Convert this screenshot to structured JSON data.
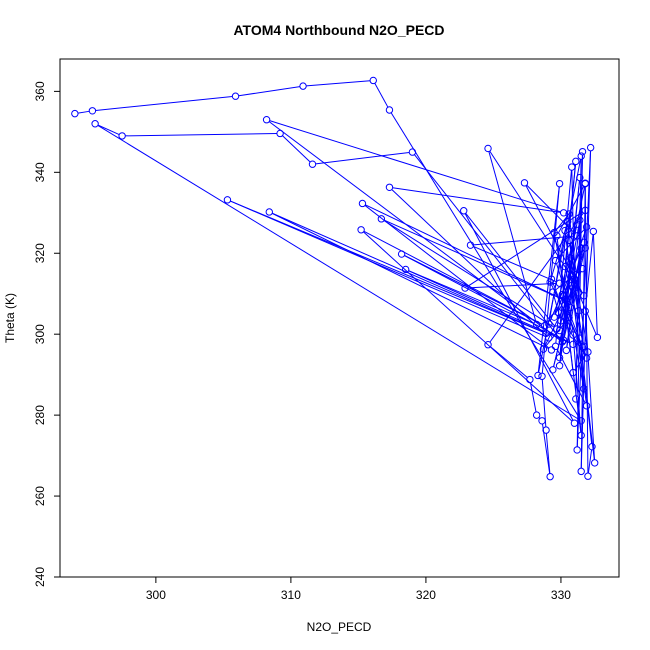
{
  "chart_data": {
    "type": "line",
    "title": "ATOM4 Northbound N2O_PECD",
    "xlabel": "N2O_PECD",
    "ylabel": "Theta (K)",
    "xlim": [
      292.9,
      334.3
    ],
    "ylim": [
      240,
      368
    ],
    "xticks": [
      300,
      310,
      320,
      330
    ],
    "yticks": [
      240,
      260,
      280,
      300,
      320,
      340,
      360
    ],
    "color": "#0000ff",
    "marker": "open-circle",
    "grid": false,
    "series": [
      {
        "points": [
          [
            294.0,
            354.5
          ],
          [
            295.3,
            355.2
          ],
          [
            305.9,
            358.8
          ],
          [
            310.9,
            361.3
          ],
          [
            316.1,
            362.7
          ],
          [
            317.3,
            355.4
          ],
          [
            331.5,
            278.6
          ],
          [
            295.5,
            352.0
          ],
          [
            297.5,
            349.0
          ],
          [
            309.2,
            349.6
          ],
          [
            311.6,
            342.0
          ],
          [
            319.0,
            345.0
          ],
          [
            330.1,
            298.1
          ],
          [
            308.2,
            353.0
          ],
          [
            330.2,
            330.0
          ],
          [
            317.3,
            336.3
          ],
          [
            329.1,
            299.1
          ],
          [
            305.3,
            333.2
          ],
          [
            328.9,
            300.2
          ],
          [
            308.4,
            330.2
          ],
          [
            329.3,
            296.1
          ],
          [
            315.3,
            332.3
          ],
          [
            330.4,
            308.2
          ],
          [
            316.7,
            328.5
          ],
          [
            329.7,
            301.3
          ],
          [
            322.8,
            330.5
          ],
          [
            331.0,
            278.0
          ],
          [
            315.2,
            325.8
          ],
          [
            328.8,
            302.1
          ],
          [
            318.2,
            319.8
          ],
          [
            330.9,
            297.5
          ],
          [
            318.5,
            316.0
          ],
          [
            328.2,
            302.4
          ],
          [
            324.6,
            345.9
          ],
          [
            331.7,
            309.5
          ],
          [
            327.3,
            337.4
          ],
          [
            331.2,
            324.3
          ],
          [
            323.3,
            322.0
          ],
          [
            329.9,
            312.6
          ],
          [
            322.9,
            311.4
          ],
          [
            331.8,
            330.6
          ],
          [
            324.6,
            297.4
          ],
          [
            327.7,
            288.8
          ],
          [
            328.2,
            280.0
          ],
          [
            328.6,
            278.6
          ],
          [
            329.2,
            264.8
          ],
          [
            328.9,
            276.3
          ],
          [
            328.6,
            289.6
          ],
          [
            329.9,
            337.2
          ],
          [
            328.3,
            289.8
          ],
          [
            331.5,
            344.0
          ],
          [
            331.1,
            284.0
          ],
          [
            331.6,
            345.1
          ],
          [
            331.2,
            271.4
          ],
          [
            332.2,
            346.1
          ],
          [
            331.5,
            266.1
          ],
          [
            331.8,
            337.3
          ],
          [
            332.0,
            264.9
          ],
          [
            332.3,
            272.2
          ],
          [
            331.4,
            299.0
          ],
          [
            332.5,
            268.2
          ],
          [
            331.8,
            305.7
          ],
          [
            332.4,
            325.4
          ],
          [
            332.7,
            299.2
          ],
          [
            331.3,
            310.2
          ],
          [
            330.6,
            329.7
          ],
          [
            329.5,
            325.1
          ],
          [
            331.7,
            286.5
          ],
          [
            330.8,
            312.0
          ],
          [
            329.9,
            292.2
          ],
          [
            331.4,
            338.7
          ],
          [
            330.2,
            298.5
          ],
          [
            331.8,
            321.3
          ],
          [
            330.0,
            303.3
          ],
          [
            329.4,
            310.4
          ],
          [
            331.6,
            316.2
          ],
          [
            328.7,
            296.3
          ],
          [
            330.6,
            304.1
          ],
          [
            331.9,
            294.1
          ],
          [
            329.8,
            305.4
          ],
          [
            331.1,
            314.7
          ],
          [
            330.4,
            296.0
          ],
          [
            331.7,
            322.7
          ],
          [
            329.4,
            291.2
          ],
          [
            331.0,
            313.6
          ],
          [
            330.8,
            341.3
          ],
          [
            329.6,
            297.0
          ],
          [
            331.9,
            282.3
          ],
          [
            330.3,
            325.6
          ],
          [
            329.1,
            302.5
          ],
          [
            331.5,
            321.2
          ],
          [
            329.9,
            294.2
          ],
          [
            330.7,
            318.9
          ],
          [
            331.3,
            305.8
          ],
          [
            330.5,
            327.8
          ],
          [
            329.2,
            312.9
          ],
          [
            331.6,
            296.8
          ],
          [
            330.1,
            309.8
          ],
          [
            331.8,
            337.2
          ],
          [
            329.7,
            324.3
          ],
          [
            330.9,
            290.5
          ],
          [
            332.0,
            295.6
          ],
          [
            330.6,
            323.2
          ],
          [
            331.2,
            327.2
          ],
          [
            329.5,
            304.2
          ],
          [
            330.8,
            314.5
          ],
          [
            331.7,
            297.0
          ],
          [
            330.3,
            316.7
          ],
          [
            331.1,
            342.7
          ],
          [
            329.9,
            300.9
          ],
          [
            331.4,
            328.2
          ],
          [
            330.7,
            306.6
          ],
          [
            329.6,
            318.2
          ],
          [
            331.9,
            326.5
          ],
          [
            330.2,
            309.5
          ],
          [
            331.5,
            275.0
          ],
          [
            330.9,
            299.8
          ],
          [
            329.3,
            313.6
          ]
        ]
      }
    ]
  }
}
